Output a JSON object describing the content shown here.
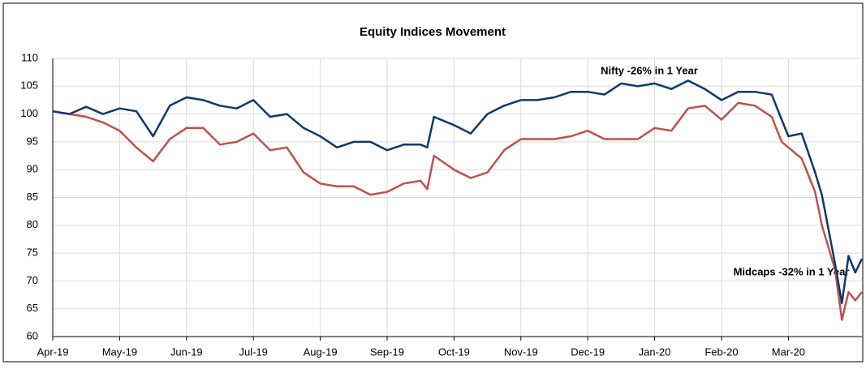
{
  "chart_data": {
    "type": "line",
    "title": "Equity Indices Movement",
    "annotations": [
      "Nifty -26% in 1 Year",
      "Midcaps -32% in 1 Year"
    ],
    "x": [
      0,
      0.25,
      0.5,
      0.75,
      1,
      1.25,
      1.5,
      1.75,
      2,
      2.25,
      2.5,
      2.75,
      3,
      3.25,
      3.5,
      3.75,
      4,
      4.25,
      4.5,
      4.75,
      5,
      5.25,
      5.5,
      5.6,
      5.7,
      6,
      6.25,
      6.5,
      6.75,
      7,
      7.25,
      7.5,
      7.75,
      8,
      8.25,
      8.5,
      8.75,
      9,
      9.25,
      9.5,
      9.75,
      10,
      10.25,
      10.5,
      10.75,
      10.9,
      11,
      11.2,
      11.4,
      11.5,
      11.7,
      11.8,
      11.9,
      12,
      12.1
    ],
    "series": [
      {
        "name": "Nifty",
        "color": "#0b3a6b",
        "values": [
          100.5,
          100,
          101.3,
          100,
          101,
          100.5,
          96,
          101.5,
          103,
          102.5,
          101.5,
          101,
          102.5,
          99.5,
          100,
          97.5,
          96,
          94,
          95,
          95,
          93.5,
          94.5,
          94.5,
          94,
          99.5,
          98,
          96.5,
          100,
          101.5,
          102.5,
          102.5,
          103,
          104,
          104,
          103.5,
          105.5,
          105,
          105.5,
          104.5,
          106,
          104.5,
          102.5,
          104,
          104,
          103.5,
          99,
          96,
          96.5,
          89.5,
          85.5,
          73,
          66,
          74.5,
          71.5,
          74
        ]
      },
      {
        "name": "Midcaps",
        "color": "#c0504d",
        "values": [
          100.5,
          100,
          99.5,
          98.5,
          97,
          94,
          91.5,
          95.5,
          97.5,
          97.5,
          94.5,
          95,
          96.5,
          93.5,
          94,
          89.5,
          87.5,
          87,
          87,
          85.5,
          86,
          87.5,
          88,
          86.5,
          92.5,
          90,
          88.5,
          89.5,
          93.5,
          95.5,
          95.5,
          95.5,
          96,
          97,
          95.5,
          95.5,
          95.5,
          97.5,
          97,
          101,
          101.5,
          99,
          102,
          101.5,
          99.5,
          95,
          94,
          92,
          86,
          80,
          72,
          63,
          68,
          66.5,
          68
        ]
      }
    ],
    "xlim": [
      0,
      12.1
    ],
    "xticks": [
      {
        "value": 0,
        "label": "Apr-19"
      },
      {
        "value": 1,
        "label": "May-19"
      },
      {
        "value": 2,
        "label": "Jun-19"
      },
      {
        "value": 3,
        "label": "Jul-19"
      },
      {
        "value": 4,
        "label": "Aug-19"
      },
      {
        "value": 5,
        "label": "Sep-19"
      },
      {
        "value": 6,
        "label": "Oct-19"
      },
      {
        "value": 7,
        "label": "Nov-19"
      },
      {
        "value": 8,
        "label": "Dec-19"
      },
      {
        "value": 9,
        "label": "Jan-20"
      },
      {
        "value": 10,
        "label": "Feb-20"
      },
      {
        "value": 11,
        "label": "Mar-20"
      }
    ],
    "ylim": [
      60,
      110
    ],
    "yticks": [
      60,
      65,
      70,
      75,
      80,
      85,
      90,
      95,
      100,
      105,
      110
    ],
    "grid": true
  }
}
